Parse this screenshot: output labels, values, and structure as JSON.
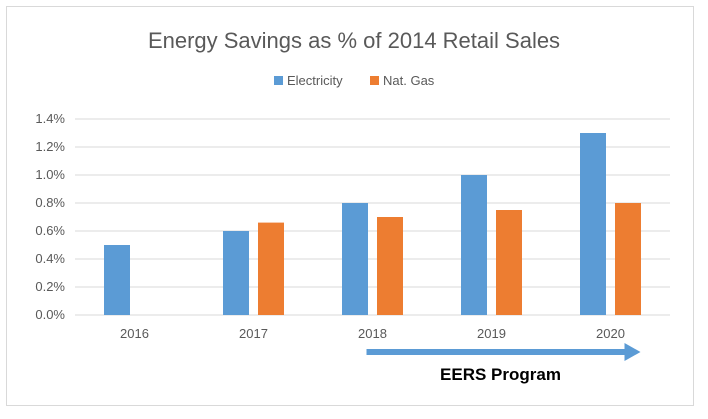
{
  "chart_data": {
    "type": "bar",
    "title": "Energy Savings as % of 2014 Retail Sales",
    "categories": [
      "2016",
      "2017",
      "2018",
      "2019",
      "2020"
    ],
    "series": [
      {
        "name": "Electricity",
        "color": "#5b9bd5",
        "values": [
          0.5,
          0.6,
          0.8,
          1.0,
          1.3
        ]
      },
      {
        "name": "Nat. Gas",
        "color": "#ed7d31",
        "values": [
          null,
          0.66,
          0.7,
          0.75,
          0.8
        ]
      }
    ],
    "ylim": [
      0,
      1.4
    ],
    "yticks": [
      "0.0%",
      "0.2%",
      "0.4%",
      "0.6%",
      "0.8%",
      "1.0%",
      "1.2%",
      "1.4%"
    ],
    "grid": true,
    "legend_position": "top",
    "annotation": {
      "text": "EERS Program",
      "arrow_color": "#5b9bd5",
      "from_category": "2018",
      "to_category": "2020"
    }
  }
}
